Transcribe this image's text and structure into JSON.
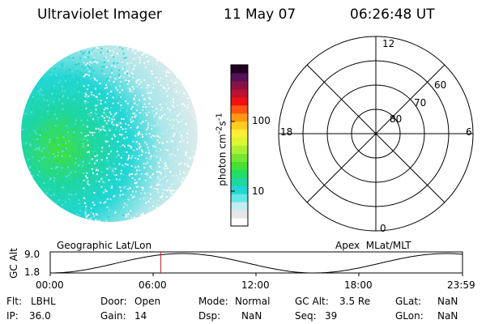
{
  "header": {
    "instrument": "Ultraviolet Imager",
    "date": "11 May 07",
    "time": "06:26:48 UT"
  },
  "colorbar": {
    "label_html": "photon cm<sup>-2</sup>s<sup>-1</sup>",
    "ticks": [
      "100",
      "10"
    ],
    "colors": [
      "#ffffff",
      "#e6e6e6",
      "#bfeef0",
      "#66e6e6",
      "#22d6d6",
      "#1ed6a0",
      "#22dd66",
      "#44e033",
      "#77e633",
      "#aaf033",
      "#ddf533",
      "#ffee33",
      "#ffcc22",
      "#ff9911",
      "#ff5511",
      "#ee1111",
      "#bb1133",
      "#881144",
      "#551155",
      "#220022"
    ]
  },
  "polar": {
    "top": "12",
    "bottom": "0",
    "left": "18",
    "right": "6",
    "rings": [
      "80",
      "70",
      "60"
    ]
  },
  "timeline": {
    "left_title": "Geographic Lat/Lon",
    "right_title": "Apex  MLat/MLT",
    "ylabel": "GC Alt",
    "ytick_top": "9.0",
    "ytick_bottom": "1.8",
    "xticks": [
      "00:00",
      "06:00",
      "12:00",
      "18:00",
      "23:59"
    ],
    "marker_time_fraction": 0.268
  },
  "info": {
    "flt_label": "Flt:",
    "flt_value": "LBHL",
    "ip_label": "IP:",
    "ip_value": "36.0",
    "door_label": "Door:",
    "door_value": "Open",
    "gain_label": "Gain:",
    "gain_value": "14",
    "mode_label": "Mode:",
    "mode_value": "Normal",
    "dsp_label": "Dsp:",
    "dsp_value": "NaN",
    "gcalt_label": "GC Alt:",
    "gcalt_value": "3.5 Re",
    "seq_label": "Seq:",
    "seq_value": "39",
    "glat_label": "GLat:",
    "glat_value": "NaN",
    "glon_label": "GLon:",
    "glon_value": "NaN"
  }
}
